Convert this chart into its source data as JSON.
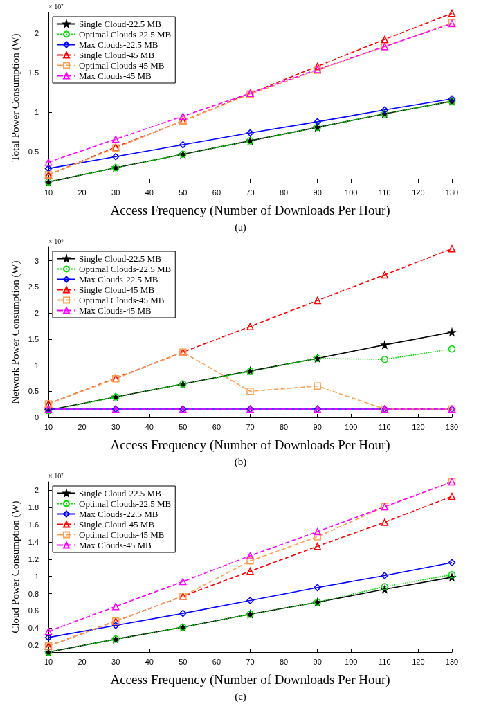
{
  "chart_data": [
    {
      "type": "line",
      "xlabel": "Access Frequency (Number of Downloads Per Hour)",
      "ylabel": "Total Power Consumption (W)",
      "annotations": [
        "× 10⁷",
        "(a)"
      ],
      "x": [
        10,
        30,
        50,
        70,
        90,
        110,
        130
      ],
      "xlim": [
        10,
        130
      ],
      "xticks": [
        10,
        20,
        30,
        40,
        50,
        60,
        70,
        80,
        90,
        100,
        110,
        120,
        130
      ],
      "ylim": [
        0.11,
        2.26
      ],
      "yticks": [
        0.5,
        1,
        1.5,
        2
      ],
      "legend": "top left",
      "series": [
        {
          "name": "Single Cloud-22.5 MB",
          "color": "#000000",
          "marker": "star",
          "line_style": "solid",
          "values": [
            0.12,
            0.3,
            0.47,
            0.64,
            0.81,
            0.98,
            1.14
          ]
        },
        {
          "name": "Optimal Clouds-22.5 MB",
          "color": "#00dd00",
          "marker": "circle",
          "line_style": "dotted",
          "values": [
            0.12,
            0.3,
            0.47,
            0.64,
            0.81,
            0.98,
            1.14
          ]
        },
        {
          "name": "Max Clouds-22.5 MB",
          "color": "#0000ff",
          "marker": "diamond",
          "line_style": "solid",
          "values": [
            0.29,
            0.44,
            0.59,
            0.74,
            0.88,
            1.03,
            1.17
          ]
        },
        {
          "name": "Single Cloud-45 MB",
          "color": "#ff0000",
          "marker": "triangle",
          "line_style": "dashed",
          "values": [
            0.21,
            0.56,
            0.89,
            1.24,
            1.58,
            1.92,
            2.25
          ]
        },
        {
          "name": "Optimal Clouds-45 MB",
          "color": "#ffa050",
          "marker": "square",
          "line_style": "dashed",
          "values": [
            0.21,
            0.55,
            0.89,
            1.23,
            1.53,
            1.83,
            2.13
          ]
        },
        {
          "name": "Max Clouds-45 MB",
          "color": "#ff00ff",
          "marker": "triangle",
          "line_style": "dashed",
          "values": [
            0.37,
            0.66,
            0.95,
            1.24,
            1.54,
            1.83,
            2.12
          ]
        }
      ]
    },
    {
      "type": "line",
      "xlabel": "Access Frequency (Number of Downloads Per Hour)",
      "ylabel": "Network Power Consumption (W)",
      "annotations": [
        "× 10⁶",
        "(b)"
      ],
      "x": [
        10,
        30,
        50,
        70,
        90,
        110,
        130
      ],
      "xlim": [
        10,
        130
      ],
      "xticks": [
        10,
        20,
        30,
        40,
        50,
        60,
        70,
        80,
        90,
        100,
        110,
        120,
        130
      ],
      "ylim": [
        0,
        3.26
      ],
      "yticks": [
        0,
        0.5,
        1,
        1.5,
        2,
        2.5,
        3
      ],
      "legend": "top left",
      "series": [
        {
          "name": "Single Cloud-22.5 MB",
          "color": "#000000",
          "marker": "star",
          "line_style": "solid",
          "values": [
            0.14,
            0.39,
            0.64,
            0.89,
            1.13,
            1.39,
            1.63
          ]
        },
        {
          "name": "Optimal Clouds-22.5 MB",
          "color": "#00dd00",
          "marker": "circle",
          "line_style": "dotted",
          "values": [
            0.13,
            0.39,
            0.64,
            0.88,
            1.13,
            1.11,
            1.31
          ]
        },
        {
          "name": "Max Clouds-22.5 MB",
          "color": "#0000ff",
          "marker": "diamond",
          "line_style": "solid",
          "values": [
            0.16,
            0.16,
            0.16,
            0.16,
            0.16,
            0.16,
            0.16
          ]
        },
        {
          "name": "Single Cloud-45 MB",
          "color": "#ff0000",
          "marker": "triangle",
          "line_style": "dashed",
          "values": [
            0.26,
            0.75,
            1.25,
            1.74,
            2.24,
            2.73,
            3.23
          ]
        },
        {
          "name": "Optimal Clouds-45 MB",
          "color": "#ffa050",
          "marker": "square",
          "line_style": "dashed",
          "values": [
            0.26,
            0.74,
            1.25,
            0.5,
            0.6,
            0.16,
            0.16
          ]
        },
        {
          "name": "Max Clouds-45 MB",
          "color": "#ff00ff",
          "marker": "triangle",
          "line_style": "dashed",
          "values": [
            0.16,
            0.16,
            0.16,
            0.16,
            0.16,
            0.16,
            0.16
          ]
        }
      ]
    },
    {
      "type": "line",
      "xlabel": "Access Frequency (Number of Downloads Per Hour)",
      "ylabel": "Cloud Power Consumption (W)",
      "annotations": [
        "× 10⁷",
        "(c)"
      ],
      "x": [
        10,
        30,
        50,
        70,
        90,
        110,
        130
      ],
      "xlim": [
        10,
        130
      ],
      "xticks": [
        10,
        20,
        30,
        40,
        50,
        60,
        70,
        80,
        90,
        100,
        110,
        120,
        130
      ],
      "ylim": [
        0.12,
        2.1
      ],
      "yticks": [
        0.2,
        0.4,
        0.6,
        0.8,
        1,
        1.2,
        1.4,
        1.6,
        1.8,
        2
      ],
      "legend": "top left",
      "series": [
        {
          "name": "Single Cloud-22.5 MB",
          "color": "#000000",
          "marker": "star",
          "line_style": "solid",
          "values": [
            0.12,
            0.27,
            0.41,
            0.56,
            0.7,
            0.85,
            0.99
          ]
        },
        {
          "name": "Optimal Clouds-22.5 MB",
          "color": "#00dd00",
          "marker": "circle",
          "line_style": "dotted",
          "values": [
            0.12,
            0.27,
            0.41,
            0.56,
            0.7,
            0.88,
            1.02
          ]
        },
        {
          "name": "Max Clouds-22.5 MB",
          "color": "#0000ff",
          "marker": "diamond",
          "line_style": "solid",
          "values": [
            0.29,
            0.43,
            0.57,
            0.72,
            0.87,
            1.01,
            1.16
          ]
        },
        {
          "name": "Single Cloud-45 MB",
          "color": "#ff0000",
          "marker": "triangle",
          "line_style": "dashed",
          "values": [
            0.19,
            0.48,
            0.77,
            1.06,
            1.35,
            1.63,
            1.93
          ]
        },
        {
          "name": "Optimal Clouds-45 MB",
          "color": "#ffa050",
          "marker": "square",
          "line_style": "dashed",
          "values": [
            0.19,
            0.48,
            0.77,
            1.18,
            1.46,
            1.81,
            2.1
          ]
        },
        {
          "name": "Max Clouds-45 MB",
          "color": "#ff00ff",
          "marker": "triangle",
          "line_style": "dashed",
          "values": [
            0.36,
            0.65,
            0.94,
            1.24,
            1.52,
            1.81,
            2.1
          ]
        }
      ]
    }
  ]
}
